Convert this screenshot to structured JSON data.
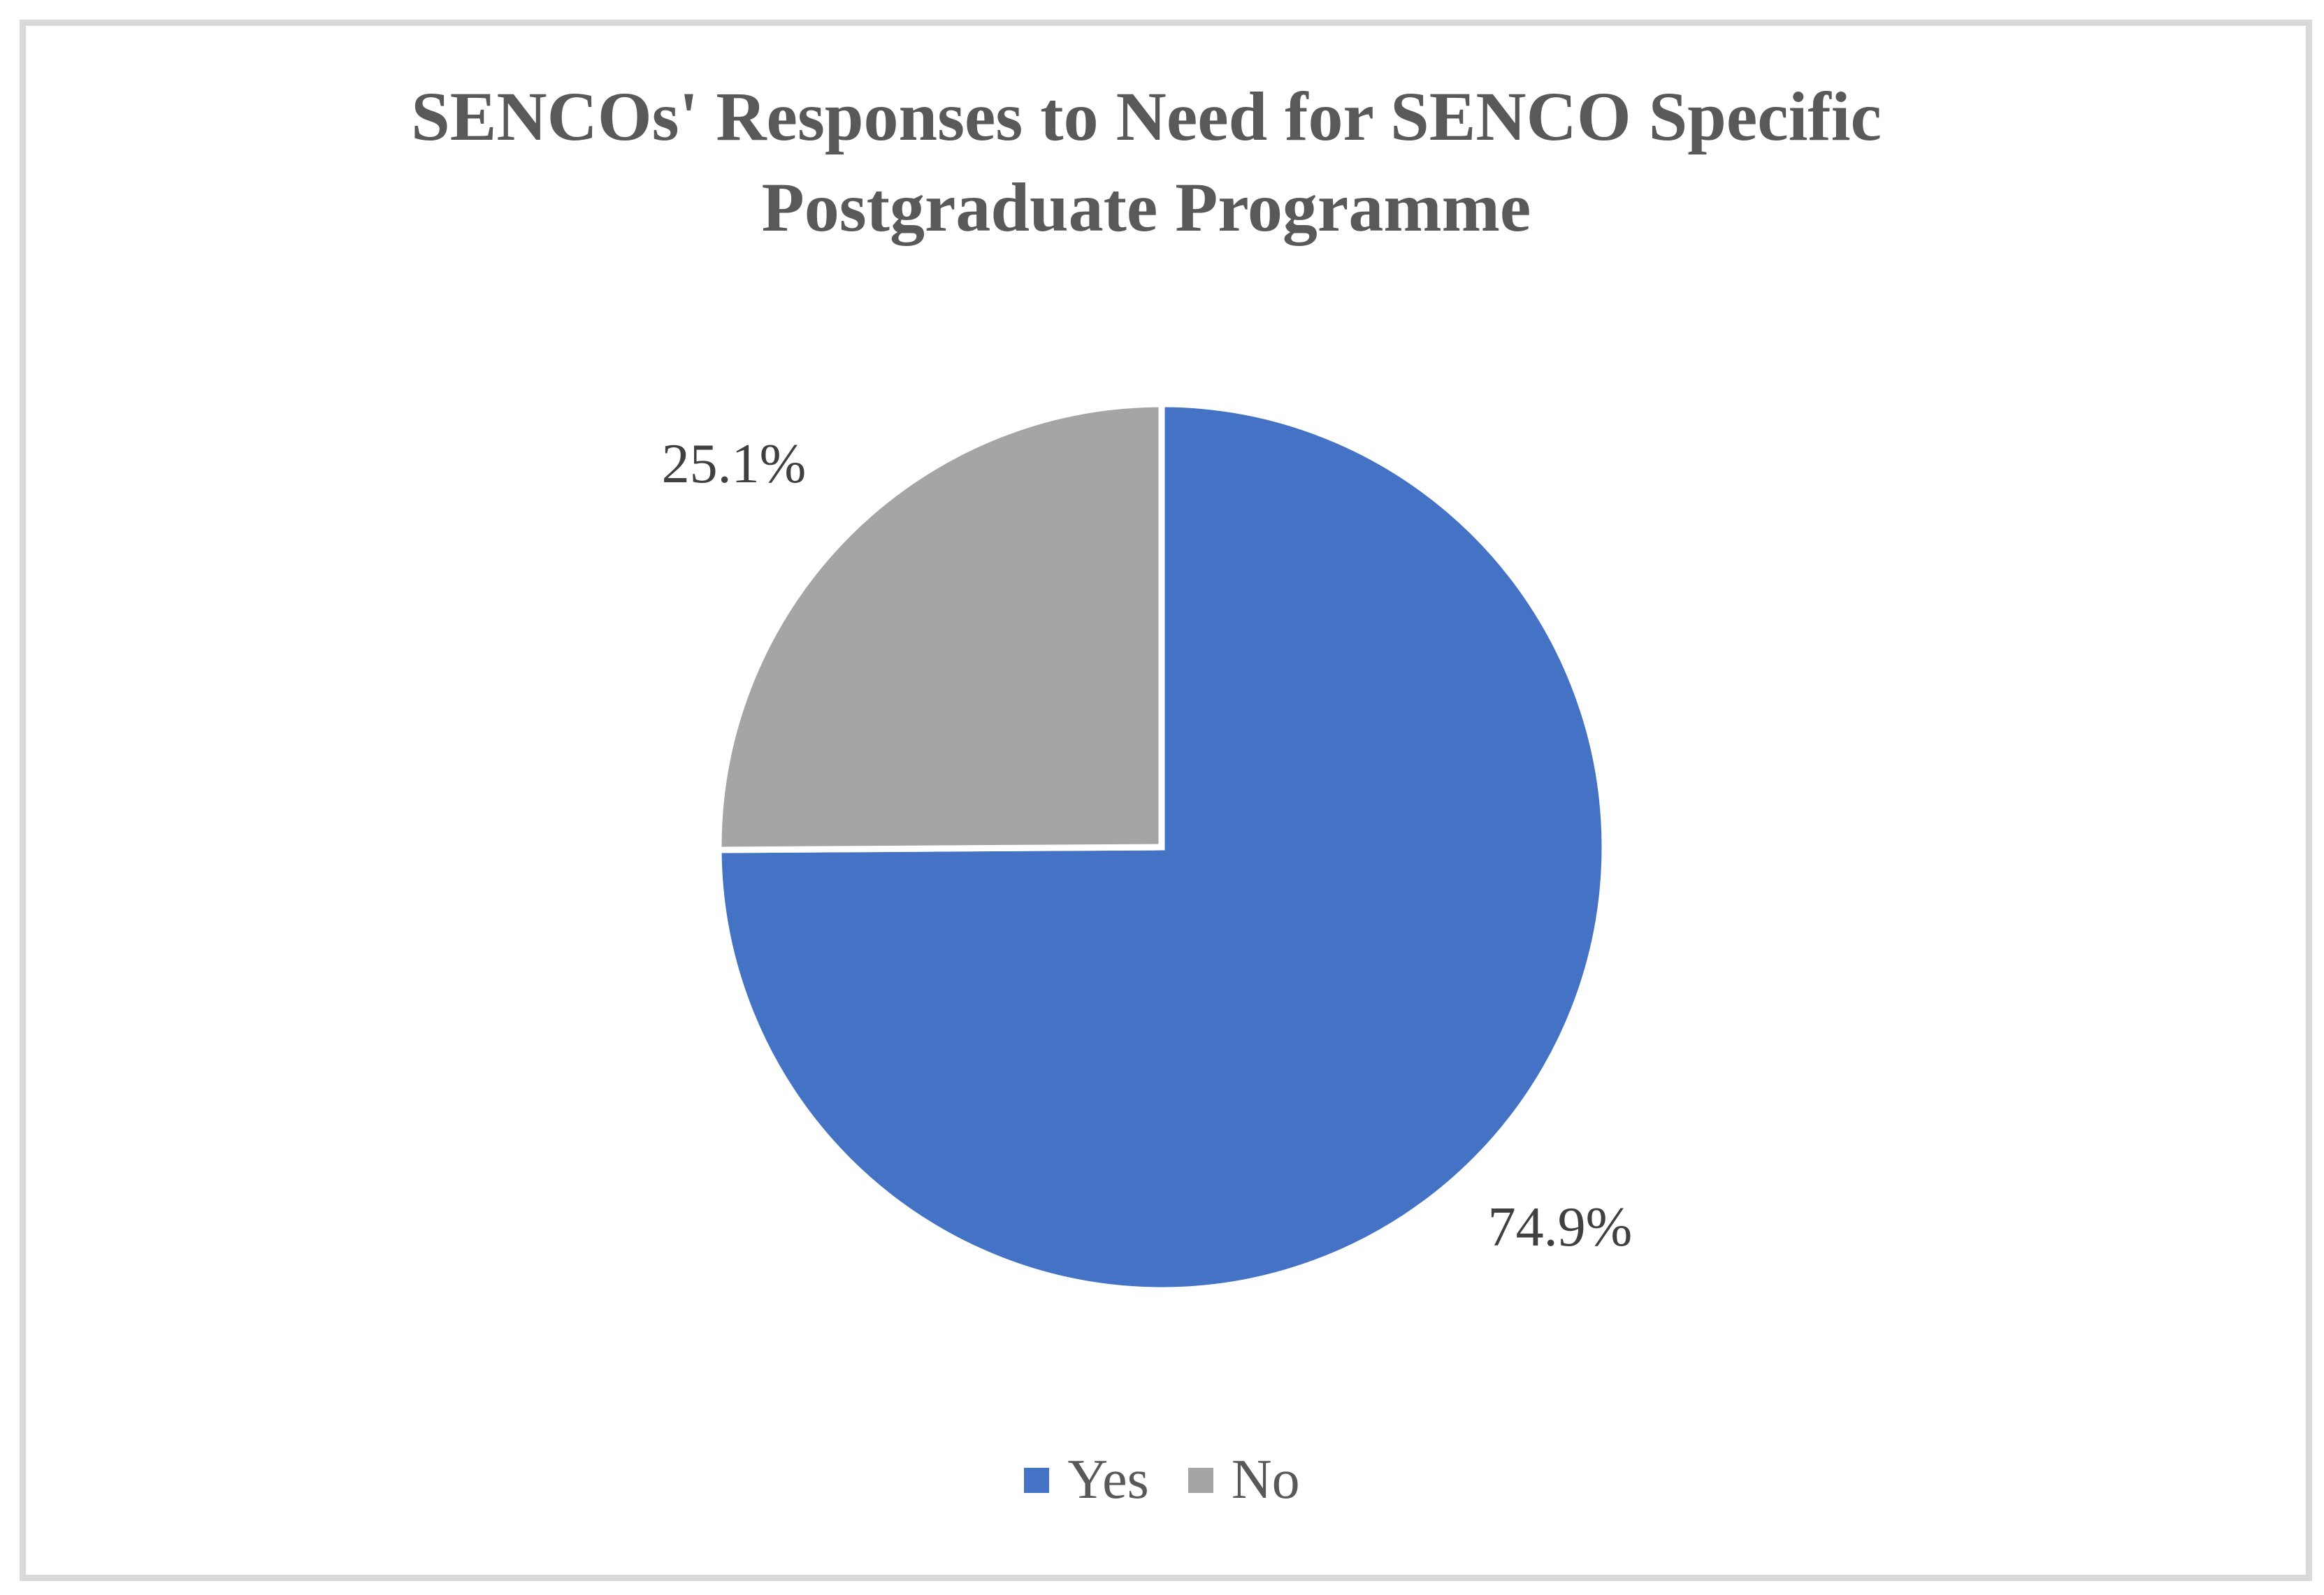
{
  "chart_data": {
    "type": "pie",
    "title_lines": [
      "SENCOs' Responses to Need for SENCO Specific",
      "Postgraduate Programme"
    ],
    "categories": [
      "Yes",
      "No"
    ],
    "values": [
      74.9,
      25.1
    ],
    "labels": [
      "74.9%",
      "25.1%"
    ],
    "colors": [
      "#4472C4",
      "#A5A5A5"
    ],
    "legend_position": "bottom",
    "start_angle": "12 o'clock",
    "direction": "clockwise"
  }
}
